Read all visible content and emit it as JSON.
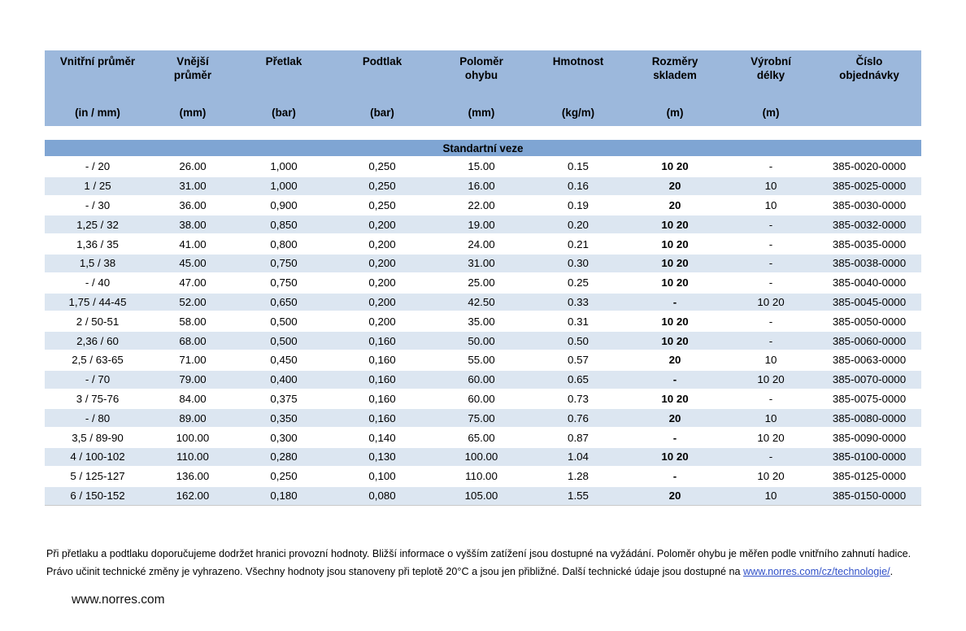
{
  "table": {
    "section_title": "Standartní veze",
    "columns": [
      {
        "title": "Vnitřní průměr",
        "unit": "(in / mm)"
      },
      {
        "title": "Vnější průměr",
        "unit": "(mm)"
      },
      {
        "title": "Přetlak",
        "unit": "(bar)"
      },
      {
        "title": "Podtlak",
        "unit": "(bar)"
      },
      {
        "title": "Poloměr ohybu",
        "unit": "(mm)"
      },
      {
        "title": "Hmotnost",
        "unit": "(kg/m)"
      },
      {
        "title": "Rozměry skladem",
        "unit": "(m)"
      },
      {
        "title": "Výrobní délky",
        "unit": "(m)"
      },
      {
        "title": "Číslo objednávky",
        "unit": ""
      }
    ],
    "rows": [
      [
        "- / 20",
        "26.00",
        "1,000",
        "0,250",
        "15.00",
        "0.15",
        "10 20",
        "-",
        "385-0020-0000"
      ],
      [
        "1 / 25",
        "31.00",
        "1,000",
        "0,250",
        "16.00",
        "0.16",
        "20",
        "10",
        "385-0025-0000"
      ],
      [
        "- / 30",
        "36.00",
        "0,900",
        "0,250",
        "22.00",
        "0.19",
        "20",
        "10",
        "385-0030-0000"
      ],
      [
        "1,25 / 32",
        "38.00",
        "0,850",
        "0,200",
        "19.00",
        "0.20",
        "10 20",
        "-",
        "385-0032-0000"
      ],
      [
        "1,36 / 35",
        "41.00",
        "0,800",
        "0,200",
        "24.00",
        "0.21",
        "10 20",
        "-",
        "385-0035-0000"
      ],
      [
        "1,5 / 38",
        "45.00",
        "0,750",
        "0,200",
        "31.00",
        "0.30",
        "10 20",
        "-",
        "385-0038-0000"
      ],
      [
        "- / 40",
        "47.00",
        "0,750",
        "0,200",
        "25.00",
        "0.25",
        "10 20",
        "-",
        "385-0040-0000"
      ],
      [
        "1,75 / 44-45",
        "52.00",
        "0,650",
        "0,200",
        "42.50",
        "0.33",
        "-",
        "10 20",
        "385-0045-0000"
      ],
      [
        "2 / 50-51",
        "58.00",
        "0,500",
        "0,200",
        "35.00",
        "0.31",
        "10 20",
        "-",
        "385-0050-0000"
      ],
      [
        "2,36 / 60",
        "68.00",
        "0,500",
        "0,160",
        "50.00",
        "0.50",
        "10 20",
        "-",
        "385-0060-0000"
      ],
      [
        "2,5 / 63-65",
        "71.00",
        "0,450",
        "0,160",
        "55.00",
        "0.57",
        "20",
        "10",
        "385-0063-0000"
      ],
      [
        "- / 70",
        "79.00",
        "0,400",
        "0,160",
        "60.00",
        "0.65",
        "-",
        "10 20",
        "385-0070-0000"
      ],
      [
        "3 / 75-76",
        "84.00",
        "0,375",
        "0,160",
        "60.00",
        "0.73",
        "10 20",
        "-",
        "385-0075-0000"
      ],
      [
        "- / 80",
        "89.00",
        "0,350",
        "0,160",
        "75.00",
        "0.76",
        "20",
        "10",
        "385-0080-0000"
      ],
      [
        "3,5 / 89-90",
        "100.00",
        "0,300",
        "0,140",
        "65.00",
        "0.87",
        "-",
        "10 20",
        "385-0090-0000"
      ],
      [
        "4 / 100-102",
        "110.00",
        "0,280",
        "0,130",
        "100.00",
        "1.04",
        "10 20",
        "-",
        "385-0100-0000"
      ],
      [
        "5 / 125-127",
        "136.00",
        "0,250",
        "0,100",
        "110.00",
        "1.28",
        "-",
        "10 20",
        "385-0125-0000"
      ],
      [
        "6 / 150-152",
        "162.00",
        "0,180",
        "0,080",
        "105.00",
        "1.55",
        "20",
        "10",
        "385-0150-0000"
      ]
    ],
    "bold_column_index": 6
  },
  "footer": {
    "note_before_link": "Při přetlaku a podtlaku doporučujeme dodržet hranici provozní hodnoty. Bližší informace o vyšším zatížení jsou dostupné na vyžádání. Poloměr ohybu je měřen podle vnitřního zahnutí hadice. Právo učinit technické změny je vyhrazeno. Všechny hodnoty jsou stanoveny při teplotě 20°C a jsou jen přibližné. Další technické údaje jsou dostupné na ",
    "link_text": "www.norres.com/cz/technologie/",
    "note_after_link": ".",
    "website": "www.norres.com"
  },
  "colors": {
    "header_band": "#9cb8dc",
    "section_band": "#7fa5d3",
    "row_stripe": "#dce6f1",
    "link": "#3050c8"
  }
}
